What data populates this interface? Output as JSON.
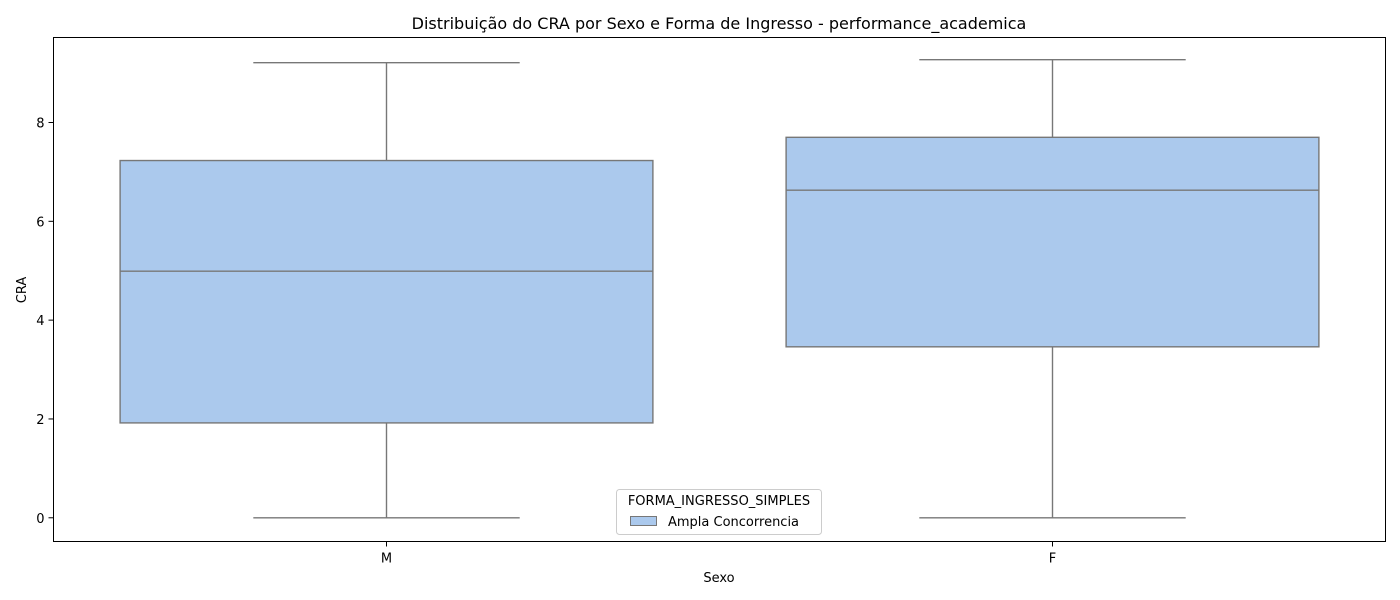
{
  "chart_data": {
    "type": "box",
    "title": "Distribuição do CRA por Sexo e Forma de Ingresso - performance_academica",
    "xlabel": "Sexo",
    "ylabel": "CRA",
    "categories": [
      "M",
      "F"
    ],
    "ylim": [
      -0.48,
      9.72
    ],
    "yticks": [
      0,
      2,
      4,
      6,
      8
    ],
    "grid": false,
    "legend": {
      "title": "FORMA_INGRESSO_SIMPLES",
      "placement": "lower-center",
      "entries": [
        "Ampla Concorrencia"
      ]
    },
    "series": [
      {
        "name": "Ampla Concorrencia",
        "color": "#abc9ed",
        "edge_color": "#777777",
        "boxes": [
          {
            "category": "M",
            "whisker_low": 0.0,
            "q1": 1.92,
            "median": 4.99,
            "q3": 7.23,
            "whisker_high": 9.21
          },
          {
            "category": "F",
            "whisker_low": 0.0,
            "q1": 3.46,
            "median": 6.63,
            "q3": 7.7,
            "whisker_high": 9.27
          }
        ]
      }
    ]
  }
}
